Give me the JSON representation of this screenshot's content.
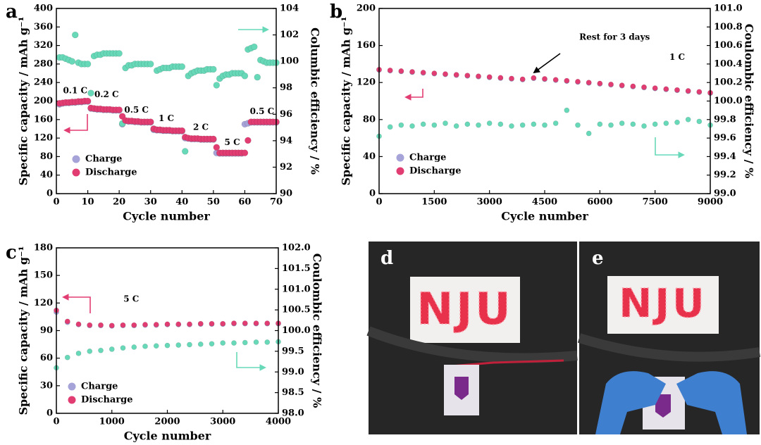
{
  "chart_data": [
    {
      "type": "scatter",
      "panel": "a",
      "xlabel": "Cycle number",
      "ylabel": "Specific capacity / mAh g⁻¹",
      "y2label": "Columbic efficiency / %",
      "xlim": [
        0,
        70
      ],
      "xticks": [
        0,
        10,
        20,
        30,
        40,
        50,
        60,
        70
      ],
      "ylim": [
        0,
        400
      ],
      "yticks": [
        0,
        40,
        80,
        120,
        160,
        200,
        240,
        280,
        320,
        360,
        400
      ],
      "y2lim": [
        90,
        104
      ],
      "y2ticks": [
        90,
        92,
        94,
        96,
        98,
        100,
        102,
        104
      ],
      "annotations": [
        "0.1 C",
        "0.2 C",
        "0.5 C",
        "1 C",
        "2 C",
        "5 C",
        "0.5 C"
      ],
      "x": [
        1,
        2,
        3,
        4,
        5,
        6,
        7,
        8,
        9,
        10,
        11,
        12,
        13,
        14,
        15,
        16,
        17,
        18,
        19,
        20,
        21,
        22,
        23,
        24,
        25,
        26,
        27,
        28,
        29,
        30,
        31,
        32,
        33,
        34,
        35,
        36,
        37,
        38,
        39,
        40,
        41,
        42,
        43,
        44,
        45,
        46,
        47,
        48,
        49,
        50,
        51,
        52,
        53,
        54,
        55,
        56,
        57,
        58,
        59,
        60,
        61,
        62,
        63,
        64,
        65,
        66,
        67,
        68,
        69,
        70
      ],
      "series": [
        {
          "name": "Charge",
          "color": "#a5a3d8",
          "values": [
            193,
            195,
            196,
            196,
            197,
            197,
            198,
            198,
            199,
            199,
            184,
            183,
            182,
            182,
            181,
            181,
            181,
            180,
            180,
            180,
            150,
            157,
            156,
            156,
            155,
            155,
            154,
            154,
            154,
            154,
            138,
            137,
            137,
            136,
            136,
            136,
            135,
            135,
            135,
            135,
            120,
            119,
            118,
            118,
            118,
            117,
            117,
            117,
            117,
            117,
            88,
            87,
            87,
            87,
            87,
            87,
            87,
            87,
            87,
            150,
            152,
            154,
            154,
            154,
            154,
            154,
            154,
            154,
            154,
            154
          ]
        },
        {
          "axis": "y2",
          "color": "#67d8b8",
          "values": [
            100.3,
            100.3,
            100.2,
            100.1,
            100.0,
            102.0,
            99.9,
            99.8,
            99.8,
            99.8,
            97.6,
            100.4,
            100.5,
            100.5,
            100.6,
            100.6,
            100.6,
            100.6,
            100.6,
            100.6,
            95.3,
            99.5,
            99.7,
            99.7,
            99.8,
            99.8,
            99.8,
            99.8,
            99.8,
            99.8,
            94.9,
            99.3,
            99.4,
            99.5,
            99.5,
            99.5,
            99.6,
            99.6,
            99.6,
            99.6,
            93.2,
            98.9,
            99.1,
            99.2,
            99.3,
            99.3,
            99.3,
            99.4,
            99.4,
            99.4,
            98.2,
            98.7,
            98.9,
            99.0,
            99.0,
            99.1,
            99.1,
            99.1,
            99.1,
            98.9,
            100.9,
            101.0,
            101.1,
            98.8,
            100.1,
            100.0,
            99.9,
            99.9,
            99.9,
            99.9
          ]
        },
        {
          "name": "Discharge",
          "color": "#e23d72",
          "values": [
            195,
            196,
            197,
            197,
            198,
            198,
            199,
            199,
            200,
            200,
            185,
            184,
            183,
            183,
            182,
            182,
            182,
            181,
            181,
            181,
            167,
            158,
            157,
            157,
            156,
            156,
            155,
            155,
            155,
            155,
            140,
            138,
            138,
            137,
            137,
            137,
            136,
            136,
            136,
            136,
            122,
            120,
            119,
            119,
            119,
            118,
            118,
            118,
            118,
            118,
            100,
            88,
            88,
            88,
            88,
            88,
            88,
            88,
            88,
            88,
            115,
            155,
            155,
            155,
            155,
            155,
            155,
            155,
            155,
            155
          ]
        }
      ]
    },
    {
      "type": "scatter",
      "panel": "b",
      "xlabel": "Cycle number",
      "ylabel": "Specific capacity / mAh g⁻¹",
      "y2label": "Coulombic efficiency / %",
      "xlim": [
        0,
        9000
      ],
      "xticks": [
        0,
        1500,
        3000,
        4500,
        6000,
        7500,
        9000
      ],
      "ylim": [
        0,
        200
      ],
      "yticks": [
        0,
        40,
        80,
        120,
        160,
        200
      ],
      "y2lim": [
        99,
        101
      ],
      "y2ticks": [
        {
          "value": 99,
          "label": "99.0"
        },
        99.2,
        99.4,
        99.6,
        99.8,
        {
          "value": 100,
          "label": "100.0"
        },
        100.2,
        100.4,
        100.6,
        100.8,
        {
          "value": 101,
          "label": "101.0"
        }
      ],
      "annotations": [
        "Rest for 3 days",
        "1 C"
      ],
      "x": [
        0,
        300,
        600,
        900,
        1200,
        1500,
        1800,
        2100,
        2400,
        2700,
        3000,
        3300,
        3600,
        3900,
        4200,
        4500,
        4800,
        5100,
        5400,
        5700,
        6000,
        6300,
        6600,
        6900,
        7200,
        7500,
        7800,
        8100,
        8400,
        8700,
        9000
      ],
      "series": [
        {
          "name": "Charge",
          "color": "#a5a3d8",
          "values": [
            133.5,
            132.7,
            131.9,
            131.1,
            130.3,
            129.5,
            128.7,
            127.9,
            127.1,
            126.3,
            125.5,
            124.7,
            123.9,
            123.1,
            124.5,
            123.5,
            122.5,
            121.5,
            120.5,
            119.5,
            118.5,
            117.5,
            116.5,
            115.5,
            114.5,
            113.5,
            112.5,
            111.5,
            110.5,
            109.5,
            108.5
          ]
        },
        {
          "axis": "y2",
          "color": "#67d8b8",
          "values": [
            99.62,
            99.72,
            99.74,
            99.73,
            99.75,
            99.74,
            99.76,
            99.73,
            99.75,
            99.74,
            99.76,
            99.75,
            99.73,
            99.74,
            99.75,
            99.74,
            99.76,
            99.9,
            99.74,
            99.65,
            99.75,
            99.74,
            99.76,
            99.75,
            99.73,
            99.75,
            99.76,
            99.77,
            99.8,
            99.78,
            99.74
          ]
        },
        {
          "name": "Discharge",
          "color": "#e23d72",
          "values": [
            134,
            133.2,
            132.4,
            131.6,
            130.8,
            130,
            129.2,
            128.4,
            127.6,
            126.8,
            126,
            125.2,
            124.4,
            123.6,
            125,
            124,
            123,
            122,
            121,
            120,
            119,
            118,
            117,
            116,
            115,
            114,
            113,
            112,
            111,
            110,
            109
          ]
        }
      ]
    },
    {
      "type": "scatter",
      "panel": "c",
      "xlabel": "Cycle number",
      "ylabel": "Specific capacity / mAh g⁻¹",
      "y2label": "Coulombic efficiency / %",
      "xlim": [
        0,
        4000
      ],
      "xticks": [
        0,
        1000,
        2000,
        3000,
        4000
      ],
      "ylim": [
        0,
        180
      ],
      "yticks": [
        0,
        30,
        60,
        90,
        120,
        150,
        180
      ],
      "y2lim": [
        98,
        102
      ],
      "y2ticks": [
        {
          "value": 98,
          "label": "98.0"
        },
        98.5,
        {
          "value": 99,
          "label": "99.0"
        },
        99.5,
        {
          "value": 100,
          "label": "100.0"
        },
        100.5,
        {
          "value": 101,
          "label": "101.0"
        },
        101.5,
        {
          "value": 102,
          "label": "102.0"
        }
      ],
      "annotations": [
        "5 C"
      ],
      "x": [
        0,
        200,
        400,
        600,
        800,
        1000,
        1200,
        1400,
        1600,
        1800,
        2000,
        2200,
        2400,
        2600,
        2800,
        3000,
        3200,
        3400,
        3600,
        3800,
        4000
      ],
      "series": [
        {
          "name": "Charge",
          "color": "#a5a3d8",
          "values": [
            110,
            99,
            96.5,
            95.5,
            95.5,
            95,
            95.5,
            95.5,
            96,
            96,
            96.5,
            96.5,
            96.5,
            97,
            97,
            97,
            97.5,
            97.5,
            97.5,
            97.5,
            97.5
          ]
        },
        {
          "axis": "y2",
          "color": "#67d8b8",
          "values": [
            99.1,
            99.35,
            99.45,
            99.5,
            99.52,
            99.55,
            99.58,
            99.6,
            99.62,
            99.63,
            99.64,
            99.65,
            99.66,
            99.67,
            99.68,
            99.7,
            99.7,
            99.71,
            99.72,
            99.72,
            99.73
          ]
        },
        {
          "name": "Discharge",
          "color": "#e23d72",
          "values": [
            112,
            100,
            97,
            96,
            96,
            95.5,
            96,
            96,
            96.5,
            96.5,
            97,
            97,
            97,
            97.5,
            97.5,
            97.5,
            98,
            98,
            98,
            98,
            98
          ]
        }
      ]
    }
  ],
  "photos": [
    {
      "label": "d",
      "sign": "NJU"
    },
    {
      "label": "e",
      "sign": "NJU"
    }
  ]
}
